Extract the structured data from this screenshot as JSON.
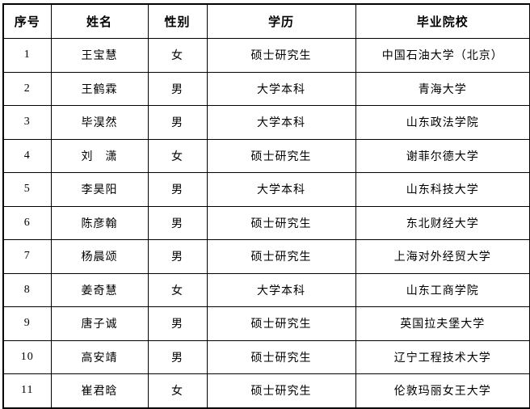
{
  "colors": {
    "background": "#ffffff",
    "border": "#000000",
    "text": "#000000"
  },
  "table": {
    "headers": [
      "序号",
      "姓名",
      "性别",
      "学历",
      "毕业院校"
    ],
    "rows": [
      [
        "1",
        "王宝慧",
        "女",
        "硕士研究生",
        "中国石油大学（北京）"
      ],
      [
        "2",
        "王鹤霖",
        "男",
        "大学本科",
        "青海大学"
      ],
      [
        "3",
        "毕淏然",
        "男",
        "大学本科",
        "山东政法学院"
      ],
      [
        "4",
        "刘　潇",
        "女",
        "硕士研究生",
        "谢菲尔德大学"
      ],
      [
        "5",
        "李昊阳",
        "男",
        "大学本科",
        "山东科技大学"
      ],
      [
        "6",
        "陈彦翰",
        "男",
        "硕士研究生",
        "东北财经大学"
      ],
      [
        "7",
        "杨晨颂",
        "男",
        "硕士研究生",
        "上海对外经贸大学"
      ],
      [
        "8",
        "姜奇慧",
        "女",
        "大学本科",
        "山东工商学院"
      ],
      [
        "9",
        "唐子诚",
        "男",
        "硕士研究生",
        "英国拉夫堡大学"
      ],
      [
        "10",
        "高安靖",
        "男",
        "硕士研究生",
        "辽宁工程技术大学"
      ],
      [
        "11",
        "崔君晗",
        "女",
        "硕士研究生",
        "伦敦玛丽女王大学"
      ]
    ]
  }
}
